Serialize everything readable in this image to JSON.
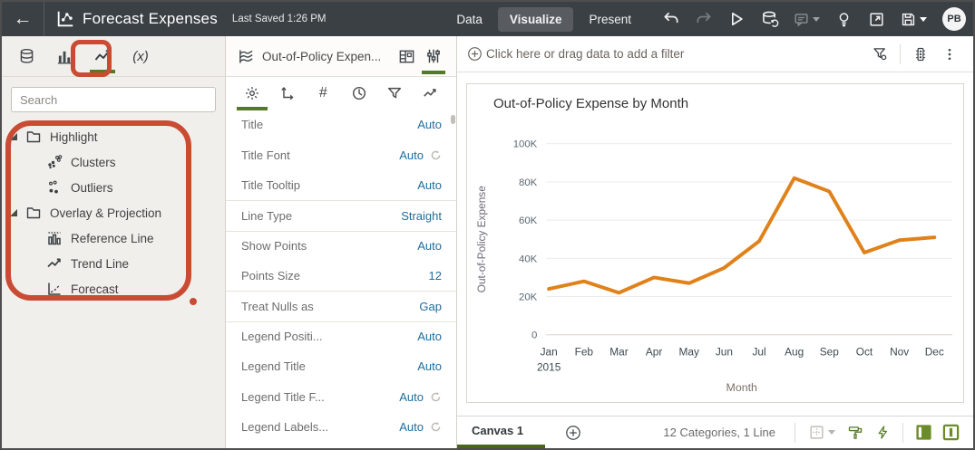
{
  "colors": {
    "accent_green": "#567a24",
    "annotation_red": "#c94b33",
    "value_blue": "#1f6e9b",
    "header_bg": "#3b4045",
    "line_orange": "#e0821b"
  },
  "header": {
    "title": "Forecast Expenses",
    "last_saved": "Last Saved 1:26 PM",
    "tabs": [
      {
        "label": "Data",
        "selected": false
      },
      {
        "label": "Visualize",
        "selected": true
      },
      {
        "label": "Present",
        "selected": false
      }
    ],
    "avatar": "PB"
  },
  "left_panel": {
    "search_placeholder": "Search",
    "expressions_label": "(x)",
    "tree": [
      {
        "label": "Highlight",
        "children": [
          {
            "label": "Clusters",
            "icon": "clusters-icon"
          },
          {
            "label": "Outliers",
            "icon": "outliers-icon"
          }
        ]
      },
      {
        "label": "Overlay & Projection",
        "children": [
          {
            "label": "Reference Line",
            "icon": "reference-line-icon"
          },
          {
            "label": "Trend Line",
            "icon": "trend-line-icon"
          },
          {
            "label": "Forecast",
            "icon": "forecast-icon"
          }
        ]
      }
    ]
  },
  "viz_panel": {
    "title": "Out-of-Policy Expen...",
    "properties": [
      {
        "label": "Title",
        "value": "Auto",
        "reset": false,
        "divider": false
      },
      {
        "label": "Title Font",
        "value": "Auto",
        "reset": true,
        "divider": false
      },
      {
        "label": "Title Tooltip",
        "value": "Auto",
        "reset": false,
        "divider": false
      },
      {
        "label": "Line Type",
        "value": "Straight",
        "reset": false,
        "divider": true
      },
      {
        "label": "Show Points",
        "value": "Auto",
        "reset": false,
        "divider": true
      },
      {
        "label": "Points Size",
        "value": "12",
        "reset": false,
        "divider": false
      },
      {
        "label": "Treat Nulls as",
        "value": "Gap",
        "reset": false,
        "divider": true
      },
      {
        "label": "Legend Positi...",
        "value": "Auto",
        "reset": false,
        "divider": true
      },
      {
        "label": "Legend Title",
        "value": "Auto",
        "reset": false,
        "divider": false
      },
      {
        "label": "Legend Title F...",
        "value": "Auto",
        "reset": true,
        "divider": false
      },
      {
        "label": "Legend Labels...",
        "value": "Auto",
        "reset": true,
        "divider": false
      }
    ]
  },
  "filter_bar": {
    "placeholder": "Click here or drag data to add a filter"
  },
  "canvas_bar": {
    "tab": "Canvas 1",
    "status": "12 Categories, 1 Line"
  },
  "chart_data": {
    "type": "line",
    "title": "Out-of-Policy Expense by Month",
    "x": [
      "Jan",
      "Feb",
      "Mar",
      "Apr",
      "May",
      "Jun",
      "Jul",
      "Aug",
      "Sep",
      "Oct",
      "Nov",
      "Dec"
    ],
    "x_first_sub_label": "2015",
    "values": [
      24000,
      28000,
      22000,
      30000,
      27000,
      35000,
      49000,
      82000,
      75000,
      43000,
      49500,
      51000
    ],
    "xlabel": "Month",
    "ylabel": "Out-of-Policy Expense",
    "ylim": [
      0,
      100000
    ],
    "ytick_step": 20000,
    "ytick_labels": [
      "0",
      "20K",
      "40K",
      "60K",
      "80K",
      "100K"
    ],
    "grid": true,
    "legend": "none",
    "line_color": "#e0821b"
  }
}
